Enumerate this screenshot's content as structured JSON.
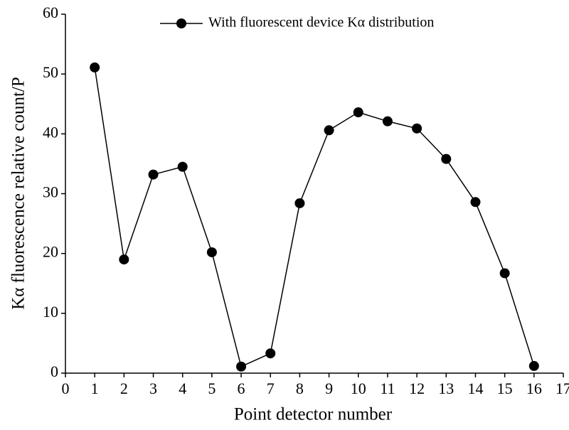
{
  "chart_data": {
    "type": "line",
    "xlabel": "Point detector number",
    "ylabel": "Kα fluorescence relative count/P",
    "x": [
      1,
      2,
      3,
      4,
      5,
      6,
      7,
      8,
      9,
      10,
      11,
      12,
      13,
      14,
      15,
      16
    ],
    "series": [
      {
        "name": "With fluorescent device Kα distribution",
        "color": "#000000",
        "values": [
          51.1,
          19.0,
          33.2,
          34.5,
          20.2,
          1.1,
          3.3,
          28.4,
          40.6,
          43.6,
          42.1,
          40.9,
          35.8,
          28.6,
          16.7,
          1.2
        ]
      }
    ],
    "xlim": [
      0,
      17
    ],
    "xticks": [
      0,
      1,
      2,
      3,
      4,
      5,
      6,
      7,
      8,
      9,
      10,
      11,
      12,
      13,
      14,
      15,
      16,
      17
    ],
    "ylim": [
      0,
      60
    ],
    "yticks": [
      0,
      10,
      20,
      30,
      40,
      50,
      60
    ],
    "grid": false,
    "legend": "top"
  }
}
